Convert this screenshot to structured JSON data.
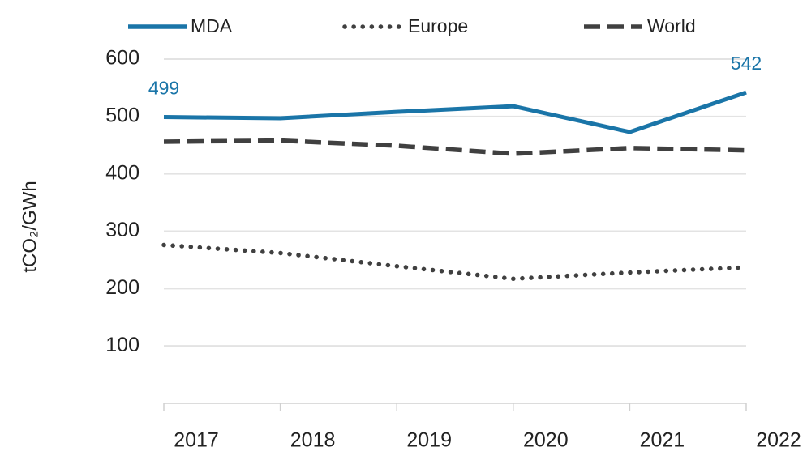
{
  "chart_data": {
    "type": "line",
    "y_label": "tCO₂/GWh",
    "categories": [
      "2017",
      "2018",
      "2019",
      "2020",
      "2021",
      "2022"
    ],
    "series": [
      {
        "name": "MDA",
        "color": "#1a75a8",
        "style": "solid",
        "values": [
          499,
          497,
          508,
          518,
          473,
          542
        ],
        "value_labels": [
          "499",
          null,
          null,
          null,
          null,
          "542"
        ]
      },
      {
        "name": "Europe",
        "color": "#404040",
        "style": "dotted",
        "values": [
          276,
          262,
          239,
          217,
          228,
          237
        ]
      },
      {
        "name": "World",
        "color": "#404040",
        "style": "dashed",
        "values": [
          456,
          458,
          449,
          435,
          445,
          441
        ]
      }
    ],
    "ylim": [
      0,
      600
    ],
    "yticks": [
      100,
      200,
      300,
      400,
      500,
      600
    ],
    "grid": true
  }
}
